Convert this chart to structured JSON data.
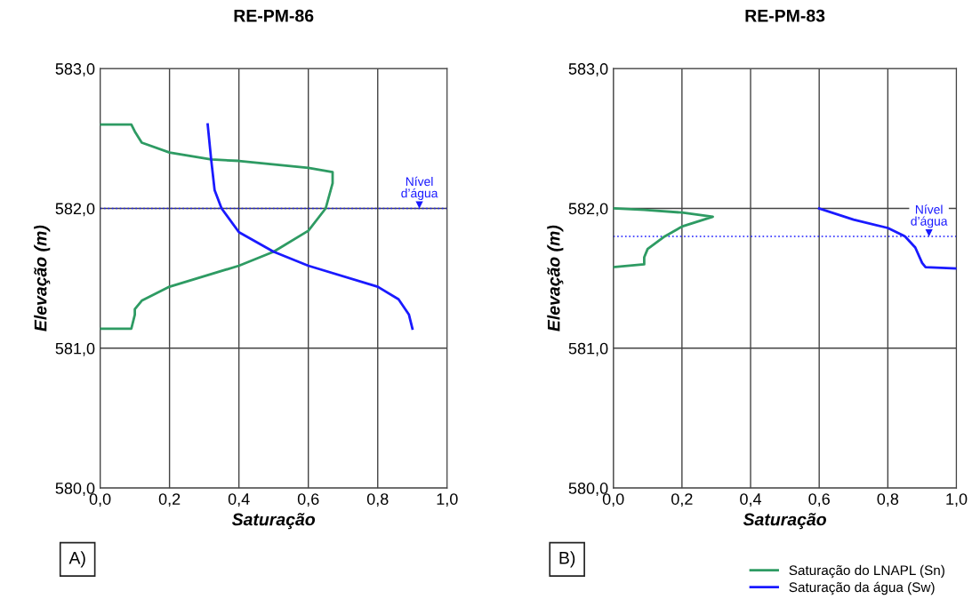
{
  "chart_data": [
    {
      "type": "line",
      "title": "RE-PM-86",
      "xlabel": "Saturação",
      "ylabel": "Elevação (m)",
      "xlim": [
        0,
        1
      ],
      "ylim": [
        580,
        583
      ],
      "xticks": [
        {
          "value": 0,
          "label": "0,0"
        },
        {
          "value": 0.2,
          "label": "0,2"
        },
        {
          "value": 0.4,
          "label": "0,4"
        },
        {
          "value": 0.6,
          "label": "0,6"
        },
        {
          "value": 0.8,
          "label": "0,8"
        },
        {
          "value": 1,
          "label": "1,0"
        }
      ],
      "yticks": [
        {
          "value": 580,
          "label": "580,0"
        },
        {
          "value": 581,
          "label": "581,0"
        },
        {
          "value": 582,
          "label": "582,0"
        },
        {
          "value": 583,
          "label": "583,0"
        }
      ],
      "grid": true,
      "legend": false,
      "annotations": [
        "A)"
      ],
      "ref_lines": [
        {
          "axis": "y",
          "value": 582.0,
          "label": "Nível\nd’água",
          "color": "#1a1aff",
          "line_style": "dotted"
        }
      ],
      "series": [
        {
          "color": "#2e9b63",
          "x": [
            0,
            0.09,
            0.1,
            0.12,
            0.2,
            0.32,
            0.4,
            0.6,
            0.67,
            0.67,
            0.65,
            0.6,
            0.5,
            0.4,
            0.2,
            0.12,
            0.1,
            0.1,
            0.09,
            0
          ],
          "values": [
            582.6,
            582.6,
            582.55,
            582.47,
            582.4,
            582.35,
            582.34,
            582.29,
            582.26,
            582.18,
            582.0,
            581.84,
            581.69,
            581.59,
            581.44,
            581.34,
            581.28,
            581.24,
            581.14,
            581.14
          ]
        },
        {
          "color": "#1a1aff",
          "x": [
            0.31,
            0.32,
            0.33,
            0.35,
            0.4,
            0.5,
            0.6,
            0.8,
            0.86,
            0.89,
            0.9
          ],
          "values": [
            582.6,
            582.35,
            582.13,
            582.0,
            581.83,
            581.69,
            581.59,
            581.44,
            581.35,
            581.24,
            581.14
          ]
        }
      ]
    },
    {
      "type": "line",
      "title": "RE-PM-83",
      "xlabel": "Saturação",
      "ylabel": "Elevação (m)",
      "xlim": [
        0,
        1
      ],
      "ylim": [
        580,
        583
      ],
      "xticks": [
        {
          "value": 0,
          "label": "0,0"
        },
        {
          "value": 0.2,
          "label": "0,2"
        },
        {
          "value": 0.4,
          "label": "0,4"
        },
        {
          "value": 0.6,
          "label": "0,6"
        },
        {
          "value": 0.8,
          "label": "0,8"
        },
        {
          "value": 1,
          "label": "1,0"
        }
      ],
      "yticks": [
        {
          "value": 580,
          "label": "580,0"
        },
        {
          "value": 581,
          "label": "581,0"
        },
        {
          "value": 582,
          "label": "582,0"
        },
        {
          "value": 583,
          "label": "583,0"
        }
      ],
      "grid": true,
      "legend": "bottom right",
      "annotations": [
        "B)"
      ],
      "ref_lines": [
        {
          "axis": "y",
          "value": 581.8,
          "label": "Nível\nd’água",
          "color": "#1a1aff",
          "line_style": "dotted"
        }
      ],
      "series": [
        {
          "name": "Saturação do LNAPL (Sn)",
          "color": "#2e9b63",
          "x": [
            0,
            0.09,
            0.2,
            0.29,
            0.2,
            0.15,
            0.1,
            0.09,
            0.09,
            0
          ],
          "values": [
            582.0,
            581.99,
            581.97,
            581.94,
            581.87,
            581.8,
            581.71,
            581.65,
            581.6,
            581.58
          ]
        },
        {
          "name": "Saturação da água (Sw)",
          "color": "#1a1aff",
          "x": [
            0.6,
            0.7,
            0.8,
            0.85,
            0.88,
            0.9,
            0.91,
            1.0
          ],
          "values": [
            582.0,
            581.92,
            581.86,
            581.8,
            581.72,
            581.61,
            581.58,
            581.57
          ]
        }
      ]
    }
  ]
}
